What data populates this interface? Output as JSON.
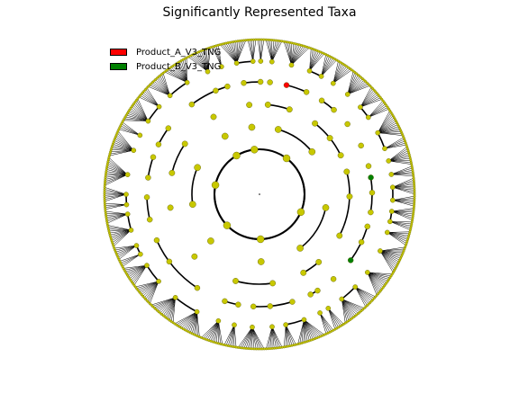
{
  "figure": {
    "title": "Significantly Represented Taxa"
  },
  "legend": {
    "items": [
      {
        "label": "Product_A_V3_TNG",
        "color": "#ff0000"
      },
      {
        "label": "Product_B_V3_TNG",
        "color": "#008000"
      }
    ]
  },
  "colors": {
    "node_default": "#c8c800",
    "node_edge": "#555500",
    "branch": "#000000",
    "highlight_a": "#ff0000",
    "highlight_b": "#008000"
  }
}
